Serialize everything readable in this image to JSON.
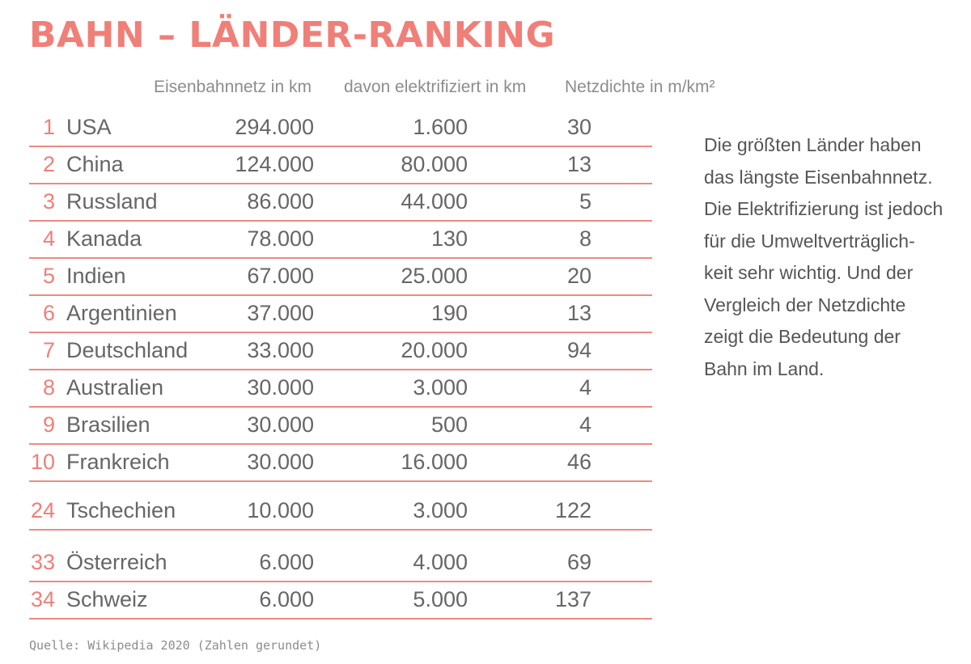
{
  "title": "BAHN – LÄNDER-RANKING",
  "chart_data": {
    "type": "table",
    "columns": [
      "Eisenbahnnetz in km",
      "davon elektrifiziert in km",
      "Netzdichte in m/km²"
    ],
    "rows": [
      {
        "rank": "1",
        "country": "USA",
        "network": "294.000",
        "electrified": "1.600",
        "density": "30"
      },
      {
        "rank": "2",
        "country": "China",
        "network": "124.000",
        "electrified": "80.000",
        "density": "13"
      },
      {
        "rank": "3",
        "country": "Russland",
        "network": "86.000",
        "electrified": "44.000",
        "density": "5"
      },
      {
        "rank": "4",
        "country": "Kanada",
        "network": "78.000",
        "electrified": "130",
        "density": "8"
      },
      {
        "rank": "5",
        "country": "Indien",
        "network": "67.000",
        "electrified": "25.000",
        "density": "20"
      },
      {
        "rank": "6",
        "country": "Argentinien",
        "network": "37.000",
        "electrified": "190",
        "density": "13"
      },
      {
        "rank": "7",
        "country": "Deutschland",
        "network": "33.000",
        "electrified": "20.000",
        "density": "94"
      },
      {
        "rank": "8",
        "country": "Australien",
        "network": "30.000",
        "electrified": "3.000",
        "density": "4"
      },
      {
        "rank": "9",
        "country": "Brasilien",
        "network": "30.000",
        "electrified": "500",
        "density": "4"
      },
      {
        "rank": "10",
        "country": "Frankreich",
        "network": "30.000",
        "electrified": "16.000",
        "density": "46"
      },
      {
        "rank": "24",
        "country": "Tschechien",
        "network": "10.000",
        "electrified": "3.000",
        "density": "122"
      },
      {
        "rank": "33",
        "country": "Österreich",
        "network": "6.000",
        "electrified": "4.000",
        "density": "69"
      },
      {
        "rank": "34",
        "country": "Schweiz",
        "network": "6.000",
        "electrified": "5.000",
        "density": "137"
      }
    ]
  },
  "description": [
    "Die größten Länder haben",
    "das längste Eisenbahnnetz.",
    "Die Elektrifizierung ist jedoch",
    "für die Umweltverträglich-",
    "keit sehr wichtig. Und der",
    "Vergleich der Netzdichte",
    "zeigt die Bedeutung der",
    "Bahn im Land."
  ],
  "source": "Quelle: Wikipedia 2020 (Zahlen gerundet)",
  "colors": {
    "accent": "#f07f78",
    "rule": "#ec8a85",
    "text": "#666666",
    "muted": "#8c8c8c"
  }
}
